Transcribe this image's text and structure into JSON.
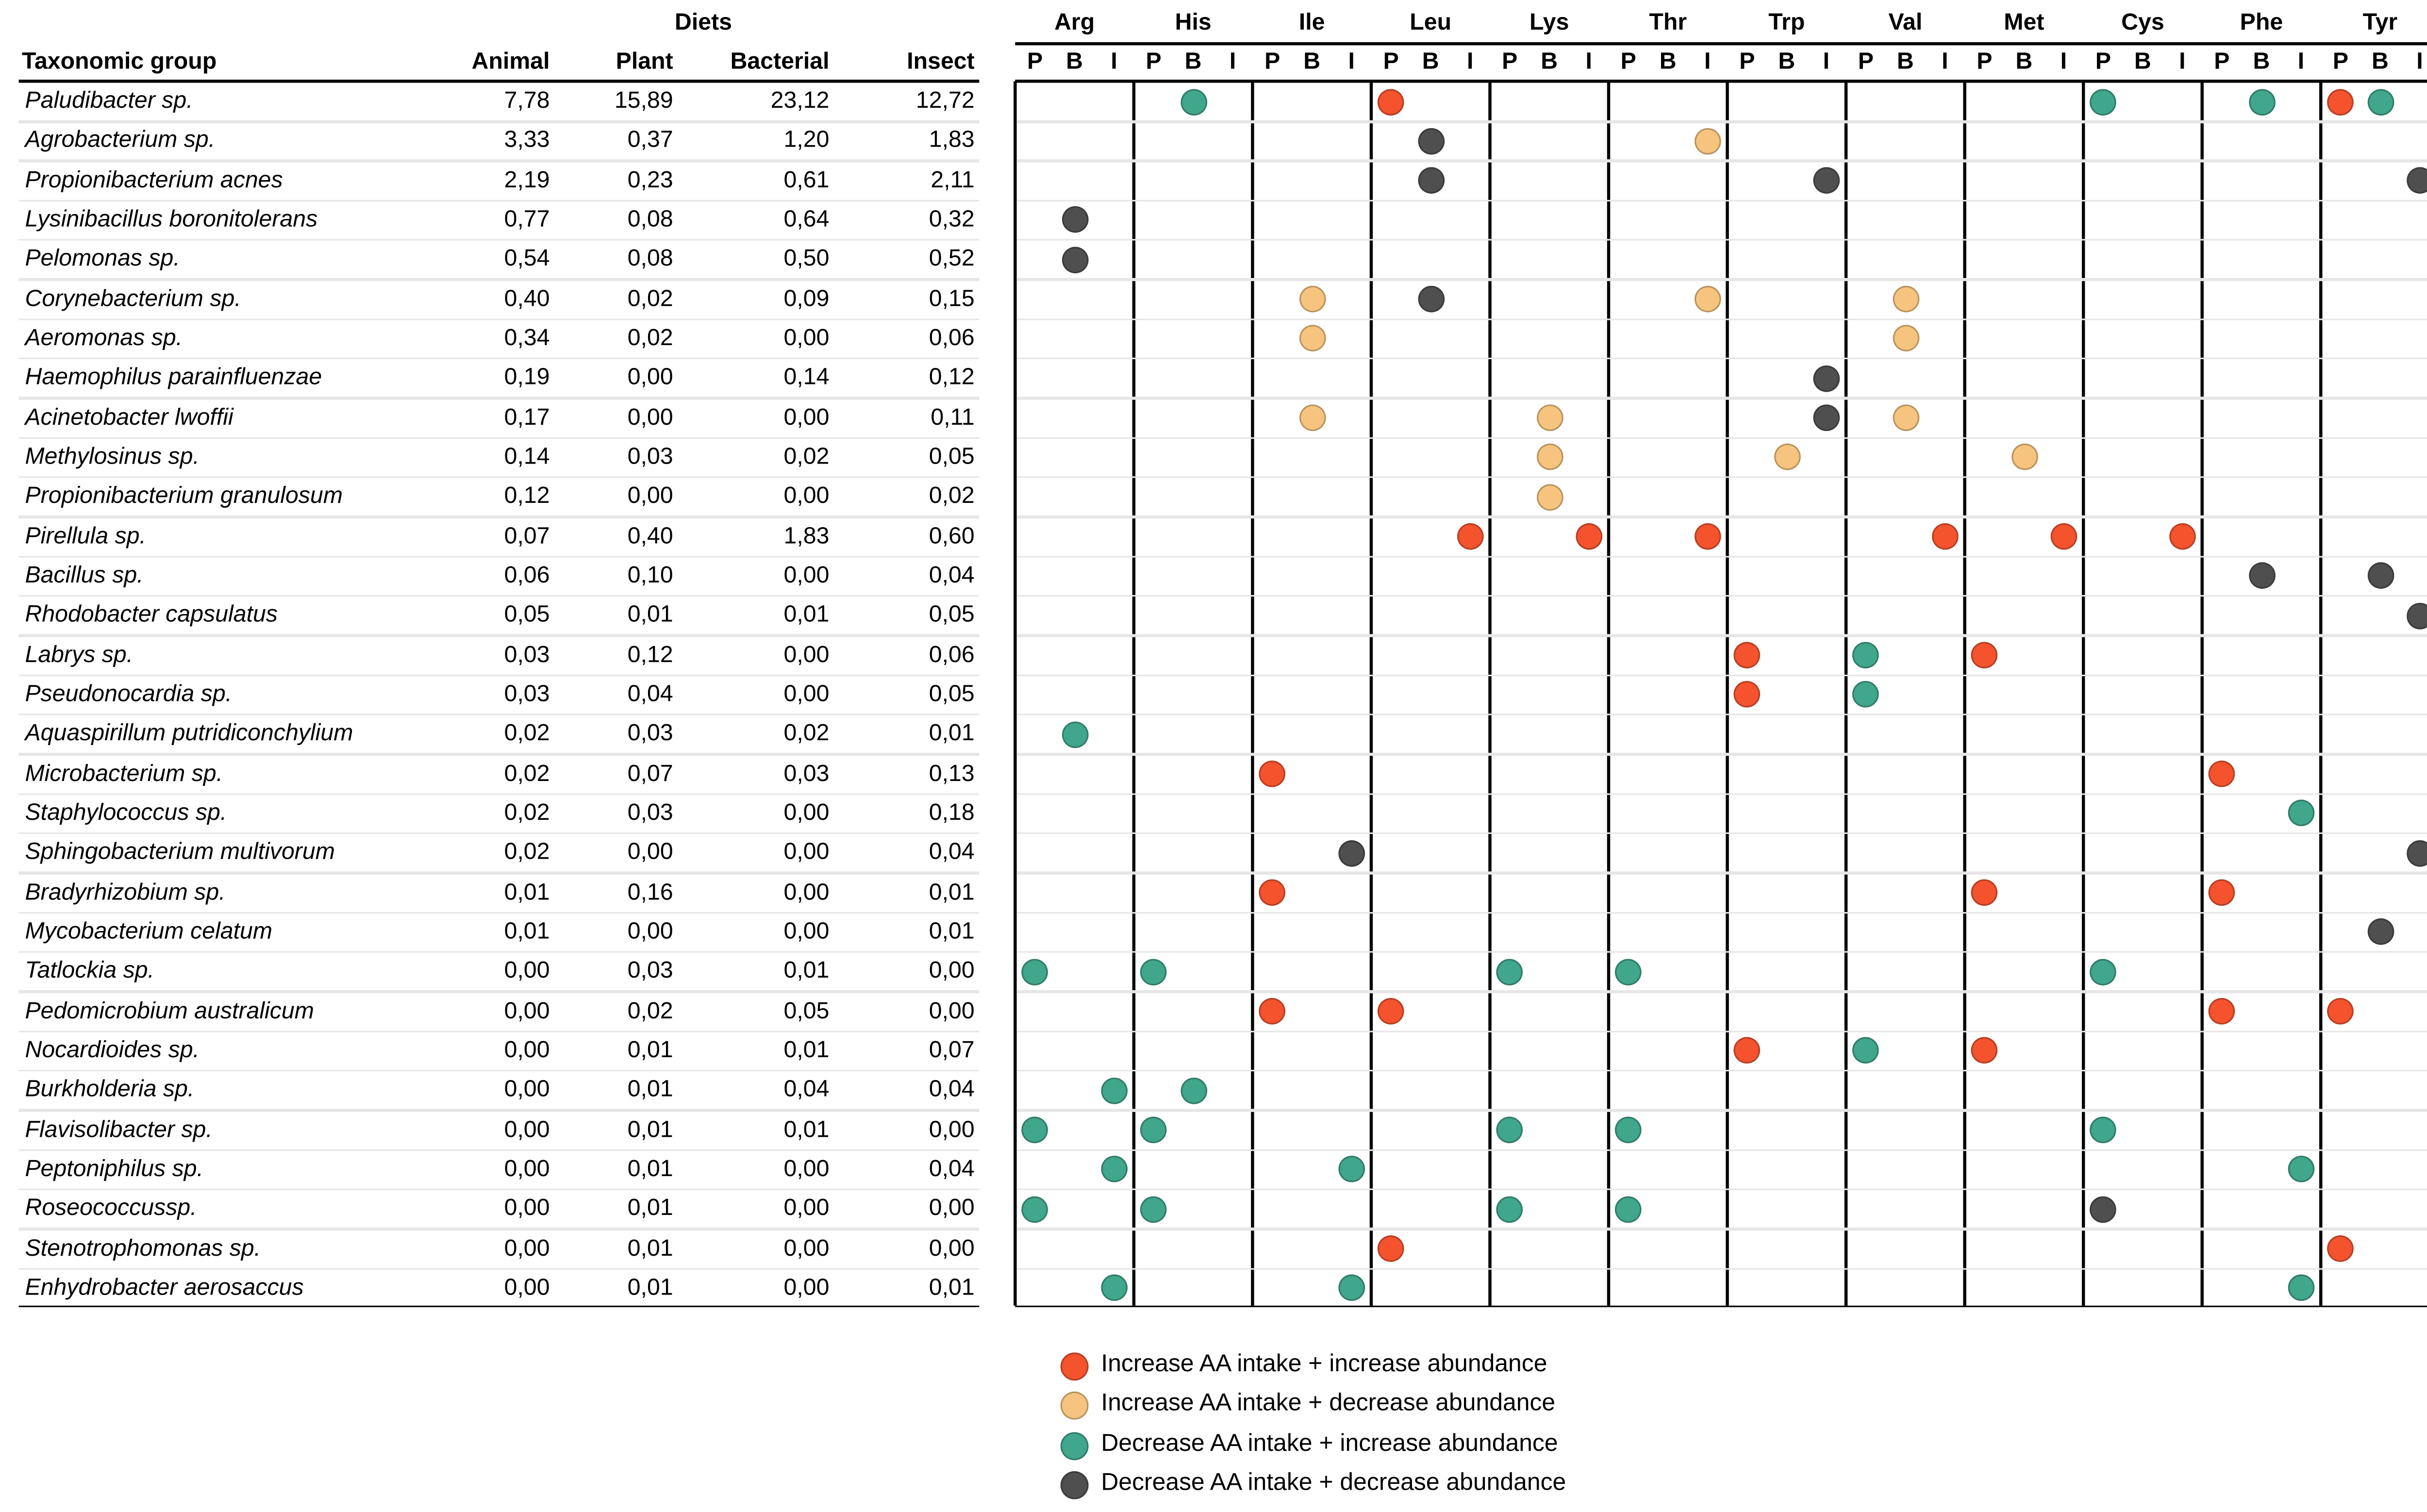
{
  "chart_data": {
    "type": "table",
    "diets_header": "Diets",
    "columns": [
      "Taxonomic group",
      "Animal",
      "Plant",
      "Bacterial",
      "Insect"
    ],
    "amino_acids": [
      "Arg",
      "His",
      "Ile",
      "Leu",
      "Lys",
      "Thr",
      "Trp",
      "Val",
      "Met",
      "Cys",
      "Phe",
      "Tyr"
    ],
    "diet_codes": [
      "P",
      "B",
      "I"
    ],
    "effects": {
      "inc_inc": {
        "label": "Increase AA intake + increase abundance",
        "color": "#F4532E"
      },
      "inc_dec": {
        "label": "Increase AA intake + decrease abundance",
        "color": "#F6C47E"
      },
      "dec_inc": {
        "label": "Decrease AA intake + increase abundance",
        "color": "#40A68C"
      },
      "dec_dec": {
        "label": "Decrease AA intake + decrease abundance",
        "color": "#4F4F4F"
      }
    },
    "legend_order": [
      "inc_inc",
      "inc_dec",
      "dec_inc",
      "dec_dec"
    ],
    "rows": [
      {
        "name": "Paludibacter sp.",
        "values": [
          "7,78",
          "15,89",
          "23,12",
          "12,72"
        ],
        "dots": [
          [
            "His",
            "B",
            "dec_inc"
          ],
          [
            "Leu",
            "P",
            "inc_inc"
          ],
          [
            "Cys",
            "P",
            "dec_inc"
          ],
          [
            "Phe",
            "B",
            "dec_inc"
          ],
          [
            "Tyr",
            "P",
            "inc_inc"
          ],
          [
            "Tyr",
            "B",
            "dec_inc"
          ]
        ]
      },
      {
        "name": "Agrobacterium sp.",
        "values": [
          "3,33",
          "0,37",
          "1,20",
          "1,83"
        ],
        "dots": [
          [
            "Leu",
            "B",
            "dec_dec"
          ],
          [
            "Thr",
            "I",
            "inc_dec"
          ]
        ]
      },
      {
        "name": "Propionibacterium acnes",
        "values": [
          "2,19",
          "0,23",
          "0,61",
          "2,11"
        ],
        "dots": [
          [
            "Leu",
            "B",
            "dec_dec"
          ],
          [
            "Trp",
            "I",
            "dec_dec"
          ],
          [
            "Tyr",
            "I",
            "dec_dec"
          ]
        ]
      },
      {
        "name": "Lysinibacillus boronitolerans",
        "values": [
          "0,77",
          "0,08",
          "0,64",
          "0,32"
        ],
        "dots": [
          [
            "Arg",
            "B",
            "dec_dec"
          ]
        ]
      },
      {
        "name": "Pelomonas sp.",
        "values": [
          "0,54",
          "0,08",
          "0,50",
          "0,52"
        ],
        "dots": [
          [
            "Arg",
            "B",
            "dec_dec"
          ]
        ]
      },
      {
        "name": "Corynebacterium sp.",
        "values": [
          "0,40",
          "0,02",
          "0,09",
          "0,15"
        ],
        "dots": [
          [
            "Ile",
            "B",
            "inc_dec"
          ],
          [
            "Leu",
            "B",
            "dec_dec"
          ],
          [
            "Thr",
            "I",
            "inc_dec"
          ],
          [
            "Val",
            "B",
            "inc_dec"
          ]
        ]
      },
      {
        "name": "Aeromonas  sp.",
        "values": [
          "0,34",
          "0,02",
          "0,00",
          "0,06"
        ],
        "dots": [
          [
            "Ile",
            "B",
            "inc_dec"
          ],
          [
            "Val",
            "B",
            "inc_dec"
          ]
        ]
      },
      {
        "name": "Haemophilus parainfluenzae",
        "values": [
          "0,19",
          "0,00",
          "0,14",
          "0,12"
        ],
        "dots": [
          [
            "Trp",
            "I",
            "dec_dec"
          ]
        ]
      },
      {
        "name": "Acinetobacter lwoffii",
        "values": [
          "0,17",
          "0,00",
          "0,00",
          "0,11"
        ],
        "dots": [
          [
            "Ile",
            "B",
            "inc_dec"
          ],
          [
            "Lys",
            "B",
            "inc_dec"
          ],
          [
            "Trp",
            "I",
            "dec_dec"
          ],
          [
            "Val",
            "B",
            "inc_dec"
          ]
        ]
      },
      {
        "name": "Methylosinus sp.",
        "values": [
          "0,14",
          "0,03",
          "0,02",
          "0,05"
        ],
        "dots": [
          [
            "Lys",
            "B",
            "inc_dec"
          ],
          [
            "Trp",
            "B",
            "inc_dec"
          ],
          [
            "Met",
            "B",
            "inc_dec"
          ]
        ]
      },
      {
        "name": "Propionibacterium granulosum",
        "values": [
          "0,12",
          "0,00",
          "0,00",
          "0,02"
        ],
        "dots": [
          [
            "Lys",
            "B",
            "inc_dec"
          ]
        ]
      },
      {
        "name": "Pirellula sp.",
        "values": [
          "0,07",
          "0,40",
          "1,83",
          "0,60"
        ],
        "dots": [
          [
            "Leu",
            "I",
            "inc_inc"
          ],
          [
            "Lys",
            "I",
            "inc_inc"
          ],
          [
            "Thr",
            "I",
            "inc_inc"
          ],
          [
            "Val",
            "I",
            "inc_inc"
          ],
          [
            "Met",
            "I",
            "inc_inc"
          ],
          [
            "Cys",
            "I",
            "inc_inc"
          ]
        ]
      },
      {
        "name": "Bacillus sp.",
        "values": [
          "0,06",
          "0,10",
          "0,00",
          "0,04"
        ],
        "dots": [
          [
            "Phe",
            "B",
            "dec_dec"
          ],
          [
            "Tyr",
            "B",
            "dec_dec"
          ]
        ]
      },
      {
        "name": "Rhodobacter capsulatus",
        "values": [
          "0,05",
          "0,01",
          "0,01",
          "0,05"
        ],
        "dots": [
          [
            "Tyr",
            "I",
            "dec_dec"
          ]
        ]
      },
      {
        "name": "Labrys sp.",
        "values": [
          "0,03",
          "0,12",
          "0,00",
          "0,06"
        ],
        "dots": [
          [
            "Trp",
            "P",
            "inc_inc"
          ],
          [
            "Val",
            "P",
            "dec_inc"
          ],
          [
            "Met",
            "P",
            "inc_inc"
          ]
        ]
      },
      {
        "name": "Pseudonocardia sp.",
        "values": [
          "0,03",
          "0,04",
          "0,00",
          "0,05"
        ],
        "dots": [
          [
            "Trp",
            "P",
            "inc_inc"
          ],
          [
            "Val",
            "P",
            "dec_inc"
          ]
        ]
      },
      {
        "name": "Aquaspirillum putridiconchylium",
        "values": [
          "0,02",
          "0,03",
          "0,02",
          "0,01"
        ],
        "dots": [
          [
            "Arg",
            "B",
            "dec_inc"
          ]
        ]
      },
      {
        "name": "Microbacterium sp.",
        "values": [
          "0,02",
          "0,07",
          "0,03",
          "0,13"
        ],
        "dots": [
          [
            "Ile",
            "P",
            "inc_inc"
          ],
          [
            "Phe",
            "P",
            "inc_inc"
          ]
        ]
      },
      {
        "name": "Staphylococcus sp.",
        "values": [
          "0,02",
          "0,03",
          "0,00",
          "0,18"
        ],
        "dots": [
          [
            "Phe",
            "I",
            "dec_inc"
          ]
        ]
      },
      {
        "name": "Sphingobacterium multivorum",
        "values": [
          "0,02",
          "0,00",
          "0,00",
          "0,04"
        ],
        "dots": [
          [
            "Ile",
            "I",
            "dec_dec"
          ],
          [
            "Tyr",
            "I",
            "dec_dec"
          ]
        ]
      },
      {
        "name": "Bradyrhizobium sp.",
        "values": [
          "0,01",
          "0,16",
          "0,00",
          "0,01"
        ],
        "dots": [
          [
            "Ile",
            "P",
            "inc_inc"
          ],
          [
            "Met",
            "P",
            "inc_inc"
          ],
          [
            "Phe",
            "P",
            "inc_inc"
          ]
        ]
      },
      {
        "name": "Mycobacterium celatum",
        "values": [
          "0,01",
          "0,00",
          "0,00",
          "0,01"
        ],
        "dots": [
          [
            "Tyr",
            "B",
            "dec_dec"
          ]
        ]
      },
      {
        "name": "Tatlockia sp.",
        "values": [
          "0,00",
          "0,03",
          "0,01",
          "0,00"
        ],
        "dots": [
          [
            "Arg",
            "P",
            "dec_inc"
          ],
          [
            "His",
            "P",
            "dec_inc"
          ],
          [
            "Lys",
            "P",
            "dec_inc"
          ],
          [
            "Thr",
            "P",
            "dec_inc"
          ],
          [
            "Cys",
            "P",
            "dec_inc"
          ]
        ]
      },
      {
        "name": "Pedomicrobium australicum",
        "values": [
          "0,00",
          "0,02",
          "0,05",
          "0,00"
        ],
        "dots": [
          [
            "Ile",
            "P",
            "inc_inc"
          ],
          [
            "Leu",
            "P",
            "inc_inc"
          ],
          [
            "Phe",
            "P",
            "inc_inc"
          ],
          [
            "Tyr",
            "P",
            "inc_inc"
          ]
        ]
      },
      {
        "name": "Nocardioides sp.",
        "values": [
          "0,00",
          "0,01",
          "0,01",
          "0,07"
        ],
        "dots": [
          [
            "Trp",
            "P",
            "inc_inc"
          ],
          [
            "Val",
            "P",
            "dec_inc"
          ],
          [
            "Met",
            "P",
            "inc_inc"
          ]
        ]
      },
      {
        "name": "Burkholderia sp.",
        "values": [
          "0,00",
          "0,01",
          "0,04",
          "0,04"
        ],
        "dots": [
          [
            "Arg",
            "I",
            "dec_inc"
          ],
          [
            "His",
            "B",
            "dec_inc"
          ]
        ]
      },
      {
        "name": "Flavisolibacter sp.",
        "values": [
          "0,00",
          "0,01",
          "0,01",
          "0,00"
        ],
        "dots": [
          [
            "Arg",
            "P",
            "dec_inc"
          ],
          [
            "His",
            "P",
            "dec_inc"
          ],
          [
            "Lys",
            "P",
            "dec_inc"
          ],
          [
            "Thr",
            "P",
            "dec_inc"
          ],
          [
            "Cys",
            "P",
            "dec_inc"
          ]
        ]
      },
      {
        "name": "Peptoniphilus sp.",
        "values": [
          "0,00",
          "0,01",
          "0,00",
          "0,04"
        ],
        "dots": [
          [
            "Arg",
            "I",
            "dec_inc"
          ],
          [
            "Ile",
            "I",
            "dec_inc"
          ],
          [
            "Phe",
            "I",
            "dec_inc"
          ]
        ]
      },
      {
        "name": "Roseococcussp.",
        "values": [
          "0,00",
          "0,01",
          "0,00",
          "0,00"
        ],
        "dots": [
          [
            "Arg",
            "P",
            "dec_inc"
          ],
          [
            "His",
            "P",
            "dec_inc"
          ],
          [
            "Lys",
            "P",
            "dec_inc"
          ],
          [
            "Thr",
            "P",
            "dec_inc"
          ],
          [
            "Cys",
            "P",
            "dec_dec"
          ]
        ]
      },
      {
        "name": "Stenotrophomonas sp.",
        "values": [
          "0,00",
          "0,01",
          "0,00",
          "0,00"
        ],
        "dots": [
          [
            "Leu",
            "P",
            "inc_inc"
          ],
          [
            "Tyr",
            "P",
            "inc_inc"
          ]
        ]
      },
      {
        "name": "Enhydrobacter aerosaccus",
        "values": [
          "0,00",
          "0,01",
          "0,00",
          "0,01"
        ],
        "dots": [
          [
            "Arg",
            "I",
            "dec_inc"
          ],
          [
            "Ile",
            "I",
            "dec_inc"
          ],
          [
            "Phe",
            "I",
            "dec_inc"
          ]
        ]
      }
    ]
  }
}
